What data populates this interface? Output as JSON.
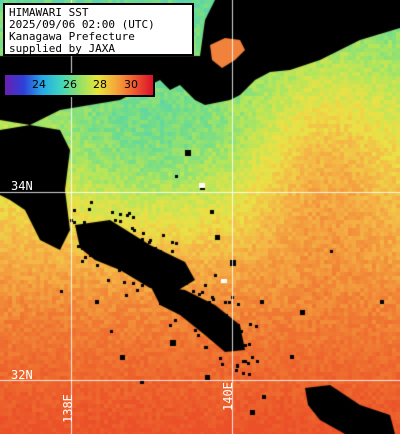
{
  "info": {
    "line1": "HIMAWARI SST",
    "line2": "2025/09/06 02:00 (UTC)",
    "line3": "Kanagawa Prefecture",
    "line4": "supplied by JAXA"
  },
  "legend": {
    "labels": [
      "24",
      "26",
      "28",
      "30"
    ],
    "colors": [
      "#6a1fb0",
      "#2e3fd8",
      "#25a8e8",
      "#3ed4c0",
      "#8fe06a",
      "#e6e63a",
      "#f5a63a",
      "#f0592f",
      "#d9102a"
    ]
  },
  "grid": {
    "lat_labels": [
      "34N",
      "32N"
    ],
    "lon_labels": [
      "138E",
      "140E"
    ]
  }
}
